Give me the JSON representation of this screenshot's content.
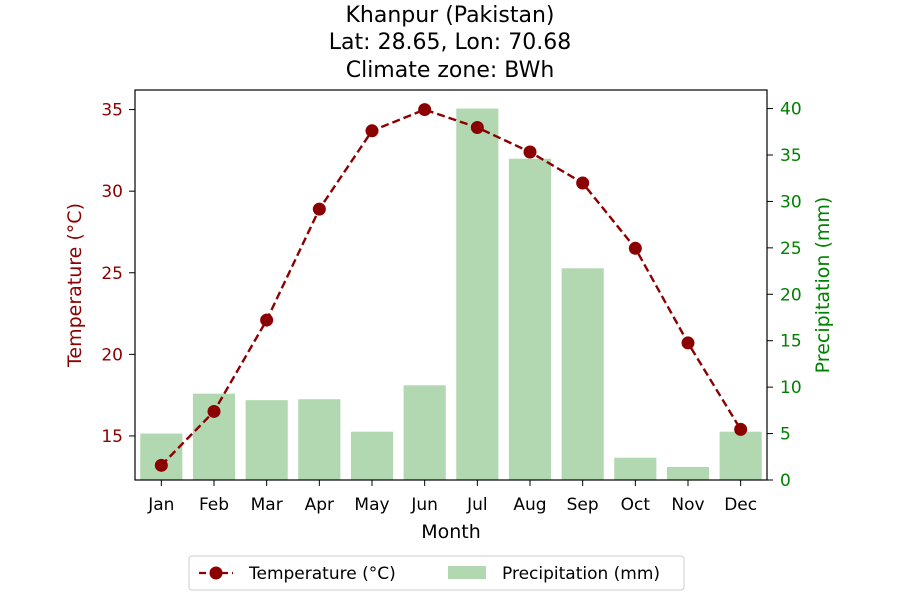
{
  "chart_data": {
    "type": "bar+line",
    "title_lines": [
      "Khanpur (Pakistan)",
      "Lat: 28.65, Lon: 70.68",
      "Climate zone: BWh"
    ],
    "xlabel": "Month",
    "ylabel_left": "Temperature (°C)",
    "ylabel_right": "Precipitation (mm)",
    "categories": [
      "Jan",
      "Feb",
      "Mar",
      "Apr",
      "May",
      "Jun",
      "Jul",
      "Aug",
      "Sep",
      "Oct",
      "Nov",
      "Dec"
    ],
    "temperature": {
      "name": "Temperature (°C)",
      "color": "#8b0000",
      "values": [
        13.2,
        16.5,
        22.1,
        28.9,
        33.7,
        35.0,
        33.9,
        32.4,
        30.5,
        26.5,
        20.7,
        15.4
      ]
    },
    "precipitation": {
      "name": "Precipitation (mm)",
      "color": "#b2d8b2",
      "values": [
        5.0,
        9.3,
        8.6,
        8.7,
        5.2,
        10.2,
        40.0,
        34.6,
        22.8,
        2.4,
        1.4,
        5.2
      ]
    },
    "ylim_left": [
      12.3,
      36.2
    ],
    "ylim_right": [
      0,
      42
    ],
    "yticks_left": [
      15,
      20,
      25,
      30,
      35
    ],
    "yticks_right": [
      0,
      5,
      10,
      15,
      20,
      25,
      30,
      35,
      40
    ],
    "left_axis_color": "#8b0000",
    "right_axis_color": "#008000",
    "legend_position": "bottom-center"
  }
}
